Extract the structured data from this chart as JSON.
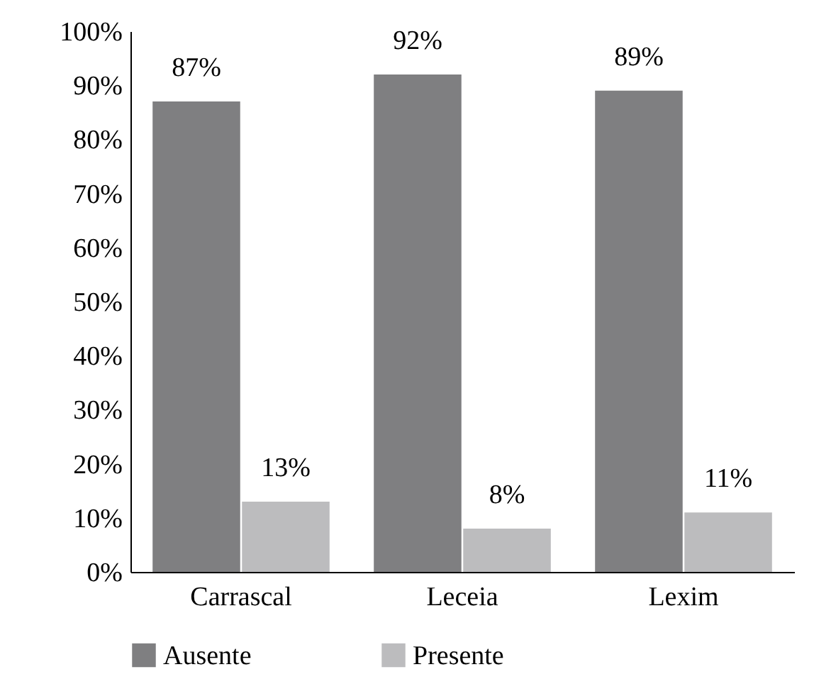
{
  "chart_data": {
    "type": "bar",
    "categories": [
      "Carrascal",
      "Leceia",
      "Lexim"
    ],
    "series": [
      {
        "name": "Ausente",
        "color": "#7f7f81",
        "values": [
          87,
          92,
          89
        ],
        "value_labels": [
          "87%",
          "92%",
          "89%"
        ]
      },
      {
        "name": "Presente",
        "color": "#bcbcbe",
        "values": [
          13,
          8,
          11
        ],
        "value_labels": [
          "13%",
          "8%",
          "11%"
        ]
      }
    ],
    "ylim": [
      0,
      100
    ],
    "yticks": [
      {
        "value": 0,
        "label": "0%"
      },
      {
        "value": 10,
        "label": "10%"
      },
      {
        "value": 20,
        "label": "20%"
      },
      {
        "value": 30,
        "label": "30%"
      },
      {
        "value": 40,
        "label": "40%"
      },
      {
        "value": 50,
        "label": "50%"
      },
      {
        "value": 60,
        "label": "60%"
      },
      {
        "value": 70,
        "label": "70%"
      },
      {
        "value": 80,
        "label": "80%"
      },
      {
        "value": 90,
        "label": "90%"
      },
      {
        "value": 100,
        "label": "100%"
      }
    ],
    "grid": false,
    "legend": "bottom"
  }
}
